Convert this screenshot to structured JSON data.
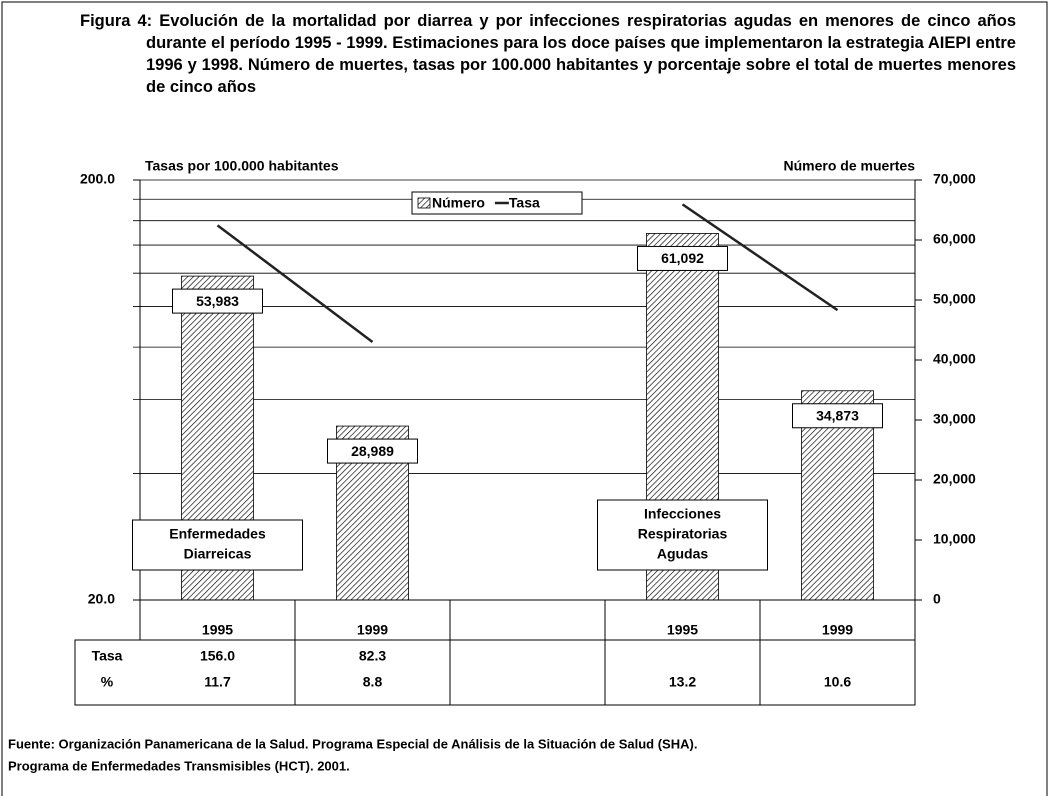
{
  "chart_data": {
    "type": "bar_line",
    "title": "Figura 4: Evolución de la mortalidad por diarrea y por infecciones respiratorias agudas en menores de cinco años durante el período 1995 - 1999. Estimaciones para los doce países que implementaron la estrategia AIEPI entre 1996 y 1998. Número de muertes, tasas por 100.000 habitantes y porcentaje sobre el total de muertes menores de cinco años",
    "ylabel": "Tasas por 100.000 habitantes",
    "y2label": "Número de muertes",
    "categories": [
      "1995",
      "1999",
      null,
      "1995",
      "1999"
    ],
    "series": [
      {
        "name": "Número",
        "kind": "bar",
        "axis": "y2",
        "color": "#000000",
        "values": [
          53983,
          28989,
          null,
          61092,
          34873
        ],
        "value_labels": [
          "53,983",
          "28,989",
          null,
          "61,092",
          "34,873"
        ]
      },
      {
        "name": "Tasa",
        "kind": "line",
        "axis": "y",
        "color": "#222222",
        "values": [
          156.0,
          82.3,
          null,
          175,
          98
        ]
      }
    ],
    "ylog": true,
    "ylim": [
      20,
      200
    ],
    "yticks": [
      {
        "value": 20,
        "label": "20.0"
      },
      {
        "value": 200,
        "label": "200.0"
      }
    ],
    "ygrid": [
      40,
      60,
      80,
      100,
      120,
      140,
      160,
      180,
      200
    ],
    "y2lim": [
      0,
      70000
    ],
    "y2ticks": [
      0,
      {
        "value": 10000,
        "label": "10,000"
      },
      {
        "value": 20000,
        "label": "20,000"
      },
      {
        "value": 30000,
        "label": "30,000"
      },
      {
        "value": 40000,
        "label": "40,000"
      },
      {
        "value": 50000,
        "label": "50,000"
      },
      {
        "value": 60000,
        "label": "60,000"
      },
      {
        "value": 70000,
        "label": "70,000"
      }
    ],
    "legend": "top",
    "annotations": [
      {
        "slot": 0.5,
        "lines": [
          "Enfermedades",
          "Diarreicas"
        ]
      },
      {
        "slot": 3.5,
        "lines": [
          "Infecciones",
          "Respiratorias",
          "Agudas"
        ]
      }
    ],
    "table_rows": [
      {
        "label": "Tasa",
        "cells": [
          "156.0",
          "82.3",
          null,
          null,
          null
        ]
      },
      {
        "label": "%",
        "cells": [
          "11.7",
          "8.8",
          null,
          "13.2",
          "10.6"
        ]
      }
    ],
    "source": [
      "Fuente: Organización Panamericana de la Salud. Programa Especial de Análisis de la Situación de Salud (SHA).",
      "Programa de Enfermedades Transmisibles (HCT). 2001."
    ]
  }
}
